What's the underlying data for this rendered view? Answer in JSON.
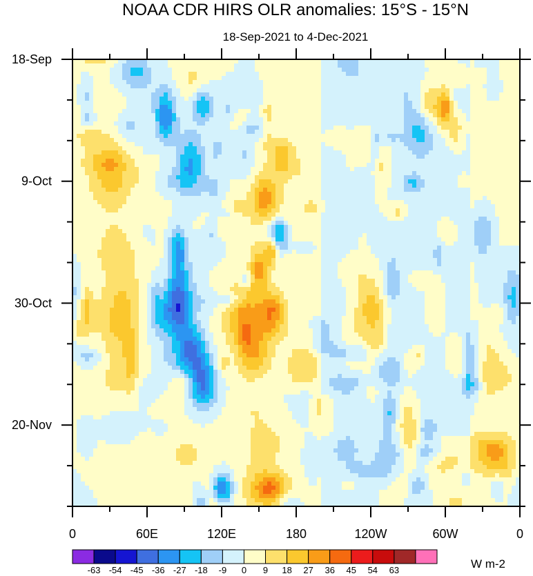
{
  "chart_data": {
    "type": "heatmap",
    "title": "NOAA CDR HIRS OLR anomalies: 15°S - 15°N",
    "subtitle": "18-Sep-2021 to 4-Dec-2021",
    "xlabel": "",
    "ylabel": "",
    "x_ticks": [
      "0",
      "60E",
      "120E",
      "180",
      "120W",
      "60W",
      "0"
    ],
    "x_range_deg": [
      0,
      360
    ],
    "y_ticks": [
      "18-Sep",
      "9-Oct",
      "30-Oct",
      "20-Nov"
    ],
    "y_tick_days": [
      0,
      21,
      42,
      63
    ],
    "y_range_days": [
      0,
      77
    ],
    "colorbar": {
      "labels": [
        "-63",
        "-54",
        "-45",
        "-36",
        "-27",
        "-18",
        "-9",
        "0",
        "9",
        "18",
        "27",
        "36",
        "45",
        "54",
        "63"
      ],
      "colors": [
        "#8b2be2",
        "#0a0a8c",
        "#1515d2",
        "#3f6fe0",
        "#2c95f2",
        "#15c4f5",
        "#9fcff8",
        "#d4f2fc",
        "#fffdc8",
        "#fde06c",
        "#fbc82e",
        "#f99c18",
        "#f56a10",
        "#ec1c1c",
        "#c80c0c",
        "#a02828",
        "#ff70b8"
      ],
      "units": "W m-2"
    },
    "field_summary": "Noisy OLR anomaly field; negative (blue) anomalies concentrated near 60E-130E shifting eastward over time; positive (orange/red) anomalies near 140E-180E mid-period; mostly weak anomalies over eastern Pacific"
  }
}
